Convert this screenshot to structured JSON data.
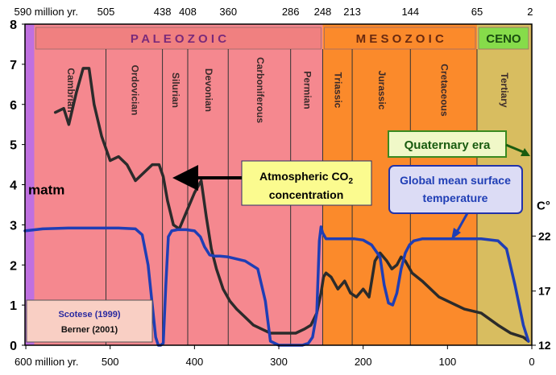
{
  "chart_data": {
    "type": "line",
    "x_reverse": true,
    "xlim": [
      601,
      0
    ],
    "ylim": [
      0,
      8
    ],
    "top_axis_ticks": [
      "590 million yr.",
      "505",
      "438",
      "408",
      "360",
      "286",
      "248",
      "213",
      "144",
      "65",
      "2"
    ],
    "top_axis_values": [
      590,
      505,
      438,
      408,
      360,
      286,
      248,
      213,
      144,
      65,
      2
    ],
    "bottom_axis_ticks": [
      "600 million yr.",
      "500",
      "400",
      "300",
      "200",
      "100",
      "0"
    ],
    "bottom_axis_values": [
      600,
      500,
      400,
      300,
      200,
      100,
      0
    ],
    "left_axis_ticks": [
      "0",
      "1",
      "2",
      "3",
      "4",
      "5",
      "6",
      "7",
      "8"
    ],
    "left_axis_label": "matm",
    "right_axis_label": "C°",
    "right_axis_ticks": [
      {
        "label": "12",
        "y": 0
      },
      {
        "label": "17",
        "y": 1.35
      },
      {
        "label": "22",
        "y": 2.72
      }
    ],
    "eras": [
      {
        "name": "P A L E O Z O I C",
        "start": 590,
        "end": 248,
        "color": "#f5888f",
        "label_bg": "#f08080",
        "label_color": "#7a2a7a"
      },
      {
        "name": "M E S O Z O I C",
        "start": 248,
        "end": 65,
        "color": "#fb8a2b",
        "label_bg": "#fb8a2b",
        "label_color": "#6a2a10"
      },
      {
        "name": "CENO",
        "start": 65,
        "end": 2,
        "color": "#d8bd60",
        "label_bg": "#86dc4a",
        "label_color": "#1a4d10"
      }
    ],
    "periods": [
      {
        "name": "Cambrian",
        "start": 590,
        "end": 505
      },
      {
        "name": "Ordovician",
        "start": 505,
        "end": 438
      },
      {
        "name": "Silurian",
        "start": 438,
        "end": 408
      },
      {
        "name": "Devonian",
        "start": 408,
        "end": 360
      },
      {
        "name": "Carboniferous",
        "start": 360,
        "end": 286
      },
      {
        "name": "Permian",
        "start": 286,
        "end": 248
      },
      {
        "name": "Triassic",
        "start": 248,
        "end": 213
      },
      {
        "name": "Jurassic",
        "start": 213,
        "end": 144
      },
      {
        "name": "Cretaceous",
        "start": 144,
        "end": 65
      },
      {
        "name": "Tertiary",
        "start": 65,
        "end": 2
      }
    ],
    "series": [
      {
        "name": "Atmospheric CO2 concentration",
        "color": "#2b2b2b",
        "x": [
          565,
          555,
          549,
          540,
          532,
          525,
          519,
          510,
          500,
          490,
          480,
          470,
          460,
          450,
          442,
          437,
          432,
          425,
          418,
          410,
          400,
          392,
          386,
          380,
          374,
          366,
          358,
          350,
          340,
          330,
          320,
          310,
          300,
          290,
          280,
          270,
          262,
          255,
          250,
          247,
          244,
          238,
          230,
          222,
          215,
          208,
          200,
          193,
          186,
          180,
          172,
          166,
          160,
          155,
          150,
          142,
          130,
          110,
          80,
          60,
          40,
          25,
          10,
          4
        ],
        "y": [
          5.8,
          5.9,
          5.5,
          6.3,
          6.9,
          6.9,
          6.0,
          5.2,
          4.6,
          4.7,
          4.5,
          4.1,
          4.3,
          4.5,
          4.5,
          4.2,
          3.6,
          3.0,
          2.9,
          3.3,
          3.8,
          4.1,
          3.2,
          2.4,
          1.9,
          1.4,
          1.1,
          0.9,
          0.7,
          0.5,
          0.4,
          0.3,
          0.3,
          0.3,
          0.3,
          0.4,
          0.5,
          0.8,
          1.3,
          1.7,
          1.8,
          1.7,
          1.4,
          1.6,
          1.3,
          1.2,
          1.4,
          1.2,
          2.1,
          2.3,
          2.1,
          1.9,
          2.0,
          2.2,
          2.1,
          1.8,
          1.6,
          1.2,
          0.9,
          0.8,
          0.5,
          0.3,
          0.2,
          0.1
        ]
      },
      {
        "name": "Global mean surface temperature",
        "color": "#1f3eb5",
        "x": [
          601,
          580,
          550,
          520,
          490,
          470,
          462,
          455,
          450,
          446,
          443,
          440,
          437,
          434,
          431,
          427,
          420,
          410,
          400,
          393,
          388,
          382,
          376,
          370,
          360,
          340,
          325,
          316,
          310,
          300,
          290,
          280,
          272,
          265,
          260,
          255,
          252,
          250,
          248,
          244,
          238,
          230,
          210,
          200,
          190,
          180,
          175,
          170,
          165,
          160,
          155,
          150,
          145,
          140,
          130,
          120,
          100,
          80,
          60,
          40,
          30,
          20,
          10,
          4
        ],
        "y": [
          2.85,
          2.9,
          2.92,
          2.92,
          2.92,
          2.9,
          2.75,
          2.0,
          1.0,
          0.2,
          0.0,
          0.0,
          0.05,
          1.5,
          2.7,
          2.85,
          2.88,
          2.88,
          2.85,
          2.7,
          2.45,
          2.25,
          2.22,
          2.22,
          2.2,
          2.1,
          1.9,
          1.1,
          0.1,
          0.0,
          0.0,
          0.0,
          0.0,
          0.05,
          0.2,
          0.8,
          2.6,
          2.95,
          2.8,
          2.65,
          2.65,
          2.65,
          2.65,
          2.62,
          2.5,
          2.2,
          1.5,
          1.05,
          1.0,
          1.3,
          1.9,
          2.3,
          2.5,
          2.6,
          2.65,
          2.65,
          2.65,
          2.65,
          2.65,
          2.6,
          2.4,
          1.5,
          0.5,
          0.1
        ]
      }
    ],
    "annotations": {
      "co2_line1": "Atmospheric CO",
      "co2_sub": "2",
      "co2_line2": "concentration",
      "temp_line1": "Global mean surface",
      "temp_line2": "temperature",
      "quaternary": "Quaternary era",
      "source_1": "Scotese (1999)",
      "source_2": "Berner (2001)"
    }
  }
}
